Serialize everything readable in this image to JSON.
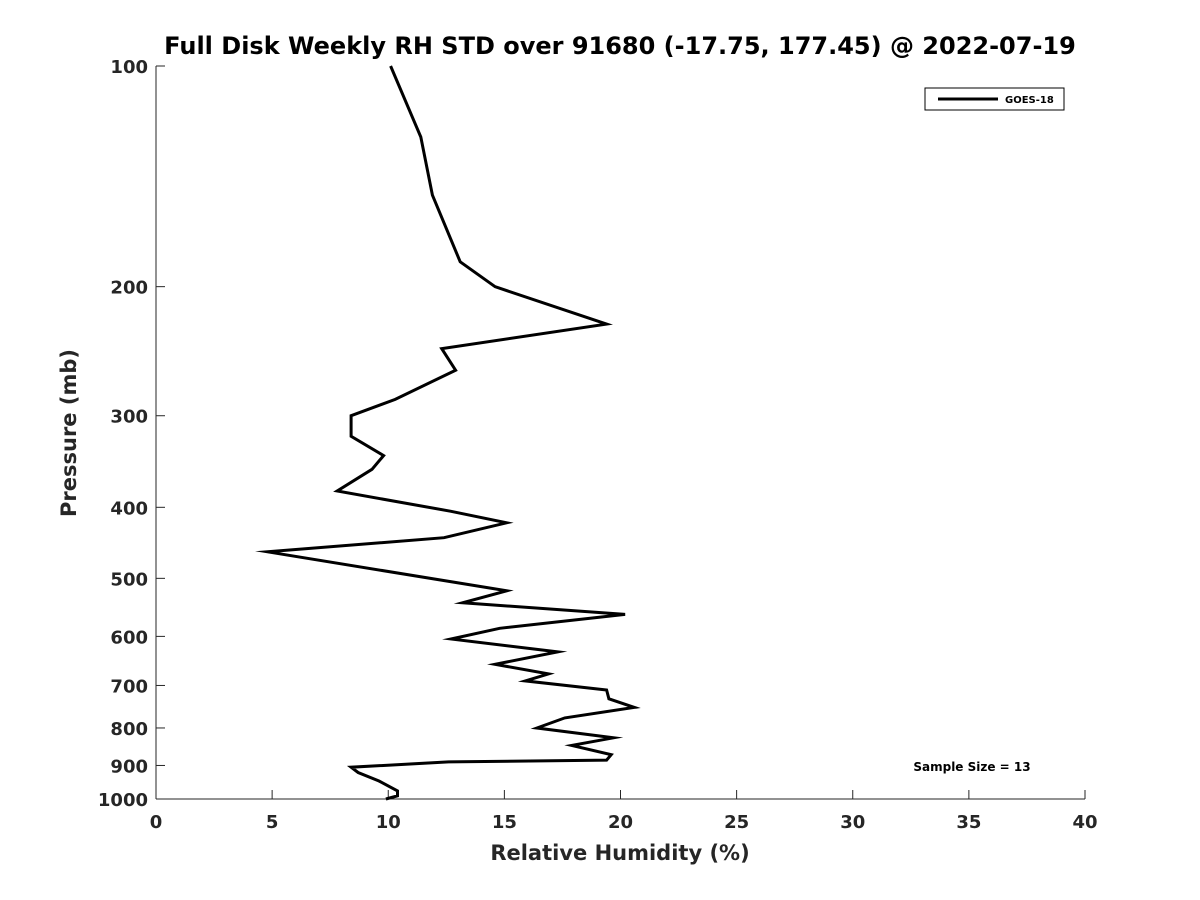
{
  "chart_data": {
    "type": "line",
    "title": "Full Disk Weekly RH STD over 91680 (-17.75, 177.45) @ 2022-07-19",
    "xlabel": "Relative Humidity (%)",
    "ylabel": "Pressure (mb)",
    "xlim": [
      0,
      40
    ],
    "ylim": [
      100,
      1000
    ],
    "y_scale": "log",
    "y_reversed": true,
    "x_ticks": [
      0,
      5,
      10,
      15,
      20,
      25,
      30,
      35,
      40
    ],
    "y_ticks": [
      100,
      200,
      300,
      400,
      500,
      600,
      700,
      800,
      900,
      1000
    ],
    "grid": false,
    "legend_position": "top-right",
    "annotation": "Sample Size = 13",
    "series": [
      {
        "name": "GOES-18",
        "color": "#000000",
        "x": [
          10.1,
          11.4,
          11.9,
          13.1,
          14.6,
          19.4,
          12.3,
          12.9,
          10.3,
          8.4,
          8.4,
          9.8,
          9.3,
          7.8,
          12.7,
          15.1,
          12.4,
          4.8,
          15.1,
          13.2,
          20.2,
          14.8,
          12.7,
          17.3,
          14.6,
          16.9,
          15.9,
          19.4,
          19.5,
          20.6,
          17.6,
          16.4,
          19.7,
          17.9,
          19.6,
          19.4,
          12.6,
          8.4,
          8.7,
          9.6,
          10.4,
          10.4,
          9.9
        ],
        "y": [
          100,
          125,
          150,
          185,
          200,
          225,
          243,
          260,
          285,
          300,
          320,
          340,
          355,
          380,
          405,
          420,
          440,
          460,
          520,
          540,
          560,
          585,
          605,
          630,
          655,
          675,
          690,
          710,
          730,
          750,
          775,
          800,
          825,
          845,
          870,
          885,
          890,
          905,
          920,
          945,
          975,
          990,
          1000
        ]
      }
    ]
  }
}
